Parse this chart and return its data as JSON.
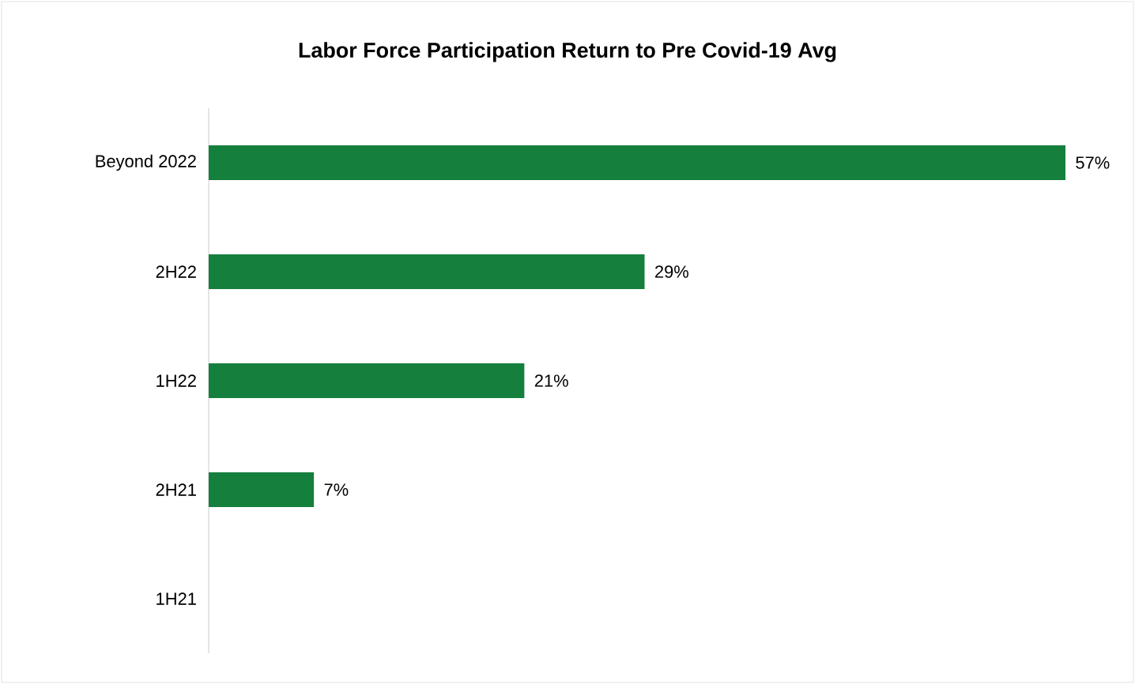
{
  "chart_data": {
    "type": "bar",
    "orientation": "horizontal",
    "title": "Labor Force Participation Return to Pre Covid-19 Avg",
    "categories": [
      "Beyond 2022",
      "2H22",
      "1H22",
      "2H21",
      "1H21"
    ],
    "values": [
      57,
      29,
      21,
      7,
      0
    ],
    "value_labels": [
      "57%",
      "29%",
      "21%",
      "7%",
      null
    ],
    "color": "#157f3d"
  }
}
